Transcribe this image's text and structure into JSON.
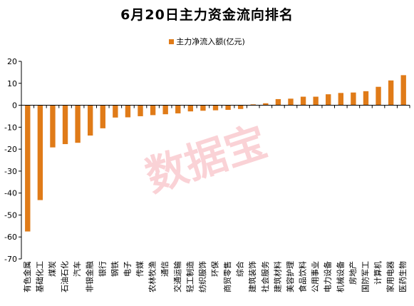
{
  "title": "6月20日主力资金流向排名",
  "colors": {
    "bar": "#e07b18",
    "axis": "#000000",
    "watermark": "#f07f8a"
  },
  "watermark": "数据宝",
  "chart_data": {
    "type": "bar",
    "title": "6月20日主力资金流向排名",
    "legend": {
      "position": "top-center"
    },
    "grid": false,
    "ylim": [
      -70,
      20
    ],
    "yticks": [
      20,
      10,
      0,
      -10,
      -20,
      -30,
      -40,
      -50,
      -60,
      -70
    ],
    "categories": [
      "有色金属",
      "基础化工",
      "煤炭",
      "石油石化",
      "汽车",
      "非银金融",
      "银行",
      "钢铁",
      "电子",
      "传媒",
      "农林牧渔",
      "通信",
      "交通运输",
      "轻工制造",
      "纺织服饰",
      "环保",
      "商贸零售",
      "综合",
      "建筑装饰",
      "社会服务",
      "建筑材料",
      "美容护理",
      "食品饮料",
      "公用事业",
      "电力设备",
      "机械设备",
      "房地产",
      "国防军工",
      "计算机",
      "家用电器",
      "医药生物"
    ],
    "series": [
      {
        "name": "主力净流入额(亿元)",
        "values": [
          -57.5,
          -43.2,
          -19.2,
          -17.7,
          -17.1,
          -13.8,
          -10.5,
          -5.6,
          -5.5,
          -5.0,
          -4.5,
          -4.1,
          -3.7,
          -2.8,
          -2.5,
          -2.3,
          -2.1,
          -1.7,
          0.4,
          0.9,
          2.8,
          3.0,
          3.9,
          3.9,
          5.0,
          5.6,
          5.8,
          6.4,
          8.4,
          11.3,
          13.7
        ]
      }
    ]
  }
}
